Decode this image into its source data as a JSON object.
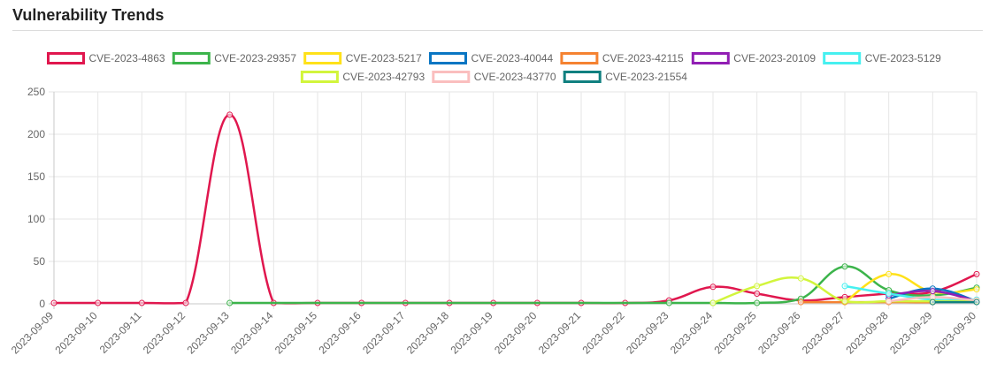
{
  "header": {
    "title": "Vulnerability Trends"
  },
  "chart_data": {
    "type": "line",
    "title": "",
    "xlabel": "",
    "ylabel": "",
    "ylim": [
      0,
      250
    ],
    "yticks": [
      0,
      50,
      100,
      150,
      200,
      250
    ],
    "grid": true,
    "legend_position": "top",
    "x": [
      "2023-09-09",
      "2023-09-10",
      "2023-09-11",
      "2023-09-12",
      "2023-09-13",
      "2023-09-14",
      "2023-09-15",
      "2023-09-16",
      "2023-09-17",
      "2023-09-18",
      "2023-09-19",
      "2023-09-20",
      "2023-09-21",
      "2023-09-22",
      "2023-09-23",
      "2023-09-24",
      "2023-09-25",
      "2023-09-26",
      "2023-09-27",
      "2023-09-28",
      "2023-09-29",
      "2023-09-30"
    ],
    "series": [
      {
        "name": "CVE-2023-4863",
        "color": "#e0174e",
        "values": [
          1,
          1,
          1,
          1,
          223,
          1,
          1,
          1,
          1,
          1,
          1,
          1,
          1,
          1,
          4,
          20,
          12,
          4,
          8,
          12,
          14,
          35
        ]
      },
      {
        "name": "CVE-2023-29357",
        "color": "#3cb44b",
        "values": [
          null,
          null,
          null,
          null,
          1,
          null,
          null,
          null,
          null,
          null,
          null,
          null,
          null,
          null,
          1,
          1,
          1,
          6,
          44,
          16,
          10,
          19
        ]
      },
      {
        "name": "CVE-2023-5217",
        "color": "#ffe119",
        "values": [
          null,
          null,
          null,
          null,
          null,
          null,
          null,
          null,
          null,
          null,
          null,
          null,
          null,
          null,
          null,
          null,
          null,
          null,
          2,
          35,
          14,
          17
        ]
      },
      {
        "name": "CVE-2023-40044",
        "color": "#0a76c3",
        "values": [
          null,
          null,
          null,
          null,
          null,
          null,
          null,
          null,
          null,
          null,
          null,
          null,
          null,
          null,
          null,
          null,
          null,
          null,
          null,
          6,
          18,
          3
        ]
      },
      {
        "name": "CVE-2023-42115",
        "color": "#f58231",
        "values": [
          null,
          null,
          null,
          null,
          null,
          null,
          null,
          null,
          null,
          null,
          null,
          null,
          null,
          null,
          null,
          null,
          null,
          2,
          2,
          2,
          2,
          4
        ]
      },
      {
        "name": "CVE-2023-20109",
        "color": "#911eb4",
        "values": [
          null,
          null,
          null,
          null,
          null,
          null,
          null,
          null,
          null,
          null,
          null,
          null,
          null,
          null,
          null,
          null,
          null,
          null,
          null,
          10,
          15,
          3
        ]
      },
      {
        "name": "CVE-2023-5129",
        "color": "#46f0f0",
        "values": [
          null,
          null,
          null,
          null,
          null,
          null,
          null,
          null,
          null,
          null,
          null,
          null,
          null,
          null,
          null,
          null,
          null,
          null,
          21,
          12,
          5,
          5
        ]
      },
      {
        "name": "CVE-2023-42793",
        "color": "#d2f53c",
        "values": [
          null,
          null,
          null,
          null,
          null,
          null,
          null,
          null,
          null,
          null,
          null,
          null,
          null,
          null,
          null,
          1,
          21,
          30,
          3,
          3,
          3,
          3
        ]
      },
      {
        "name": "CVE-2023-43770",
        "color": "#fabebe",
        "values": [
          null,
          null,
          null,
          null,
          null,
          null,
          null,
          null,
          null,
          null,
          null,
          null,
          null,
          null,
          null,
          null,
          null,
          null,
          null,
          3,
          8,
          4
        ]
      },
      {
        "name": "CVE-2023-21554",
        "color": "#108080",
        "values": [
          null,
          null,
          null,
          null,
          null,
          null,
          null,
          null,
          null,
          null,
          null,
          null,
          null,
          null,
          null,
          null,
          null,
          null,
          null,
          null,
          2,
          2
        ]
      }
    ]
  }
}
